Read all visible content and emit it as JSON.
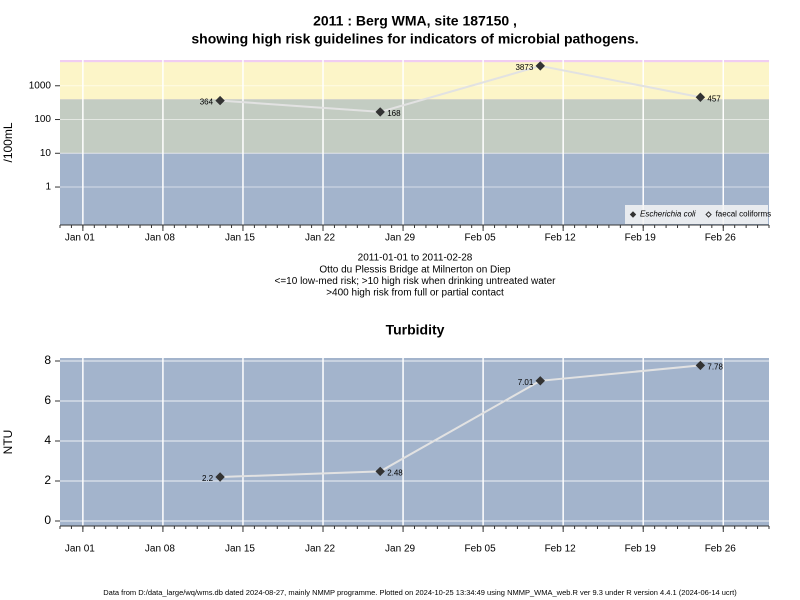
{
  "chart_data": [
    {
      "type": "line",
      "title": [
        "2011 : Berg WMA, site 187150 ,",
        "showing high risk guidelines for indicators of microbial pathogens."
      ],
      "notes": [
        "2011-01-01 to 2011-02-28",
        "Otto du Plessis Bridge at Milnerton on Diep",
        "<=10 low-med risk; >10 high risk when drinking untreated water",
        ">400 high risk from full or partial contact"
      ],
      "ylabel": "/100mL",
      "yscale": "log",
      "x": [
        "Jan 13",
        "Jan 27",
        "Feb 10",
        "Feb 24"
      ],
      "xlim": [
        "Dec 30",
        "Mar 02"
      ],
      "xticks": [
        "Jan 01",
        "Jan 08",
        "Jan 15",
        "Jan 22",
        "Jan 29",
        "Feb 05",
        "Feb 12",
        "Feb 19",
        "Feb 26"
      ],
      "ylim": [
        0.075,
        5800
      ],
      "yticks": [
        1,
        10,
        100,
        1000
      ],
      "grid": true,
      "background": "#f0cdf2",
      "bands": [
        {
          "to": 10,
          "color": "#a3b4cc"
        },
        {
          "to": 400,
          "color": "#c3ccc2"
        },
        {
          "to": 5000,
          "color": "#fcf5c8"
        }
      ],
      "line_color": "#e2e2e2",
      "legend": "bottom-right",
      "series": [
        {
          "name": "Escherichia coli",
          "color": "#333333",
          "marker": "filled",
          "values": [
            364,
            168,
            3873,
            457
          ]
        },
        {
          "name": "faecal coliforms",
          "color": "#333333",
          "marker": "open",
          "values": [
            null,
            null,
            null,
            null
          ]
        }
      ]
    },
    {
      "type": "line",
      "title": [
        "Turbidity"
      ],
      "ylabel": "NTU",
      "x": [
        "Jan 13",
        "Jan 27",
        "Feb 10",
        "Feb 24"
      ],
      "xlim": [
        "Dec 30",
        "Mar 02"
      ],
      "xticks": [
        "Jan 01",
        "Jan 08",
        "Jan 15",
        "Jan 22",
        "Jan 29",
        "Feb 05",
        "Feb 12",
        "Feb 19",
        "Feb 26"
      ],
      "ylim": [
        -0.25,
        8.15
      ],
      "yticks": [
        0,
        2,
        4,
        6,
        8
      ],
      "grid": true,
      "background": "#a3b4cc",
      "line_color": "#e2e2e2",
      "color": "#333333",
      "values": [
        2.2,
        2.48,
        7.01,
        7.78
      ]
    }
  ],
  "footer": "Data from D:/data_large/wq/wms.db dated 2024-08-27, mainly NMMP programme. Plotted on 2024-10-25 13:34:49 using NMMP_WMA_web.R ver 9.3 under R version 4.4.1 (2024-06-14 ucrt)"
}
